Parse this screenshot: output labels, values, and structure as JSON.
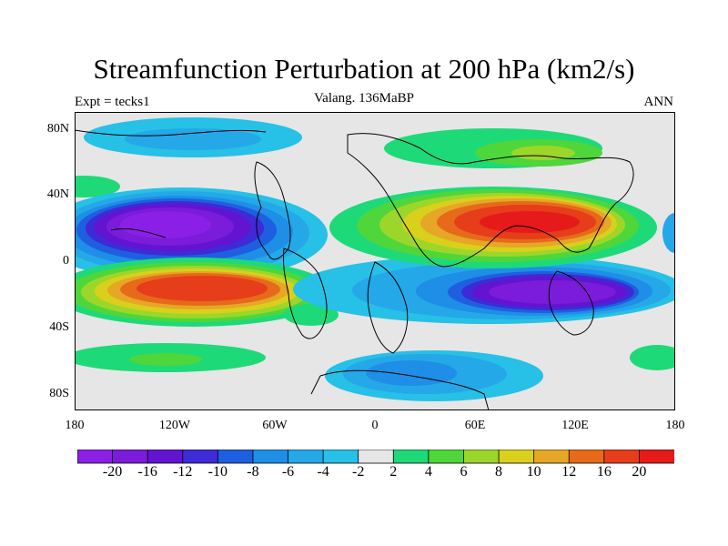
{
  "header": {
    "title": "Streamfunction Perturbation at 200 hPa (km2/s)",
    "left": "Expt = tecks1",
    "center": "Valang. 136MaBP",
    "right": "ANN"
  },
  "axes": {
    "lat_labels": [
      "80N",
      "40N",
      "0",
      "40S",
      "80S"
    ],
    "lon_labels": [
      "180",
      "120W",
      "60W",
      "0",
      "60E",
      "120E",
      "180"
    ]
  },
  "colorbar": {
    "labels": [
      "-20",
      "-16",
      "-12",
      "-10",
      "-8",
      "-6",
      "-4",
      "-2",
      "2",
      "4",
      "6",
      "8",
      "10",
      "12",
      "16",
      "20"
    ],
    "colors": [
      "#8c1fe6",
      "#7a1cd9",
      "#6214d1",
      "#3e2ad6",
      "#1e5fe0",
      "#1e8ee6",
      "#24a8e8",
      "#27c0e6",
      "#e6e6e6",
      "#1ed978",
      "#4fd63a",
      "#9dd62a",
      "#d9d01c",
      "#e6a626",
      "#e66a1a",
      "#e63d1a",
      "#e61a1a"
    ]
  },
  "colors": {
    "background": "#e6e6e6",
    "coast": "#000000"
  }
}
